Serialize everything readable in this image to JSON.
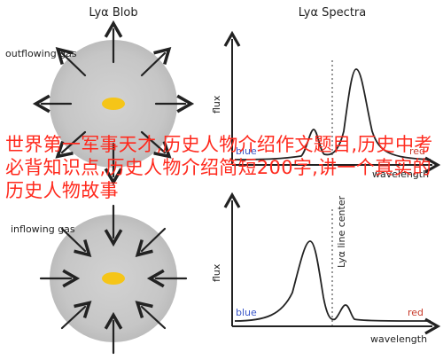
{
  "top_left_title": "Lyα Blob",
  "top_right_title": "Lyα Spectra",
  "outflow_label": "outflowing gas",
  "inflow_label": "inflowing gas",
  "flux_label": "flux",
  "wavelength_label": "wavelength",
  "line_center_label": "Lyα line center",
  "blue_label": "blue",
  "red_label": "red",
  "overlay_text": "世界第一军事天才,历史人物介绍作文题目,历史中考必背知识点,历史人物介绍简短200字,讲一个真实的历史人物故事",
  "colors": {
    "blob_gray": "#c8c8c8",
    "core_yellow": "#f5c518",
    "blue_text": "#3a56c8",
    "red_text": "#c83a2a",
    "overlay_red": "#ff2a1e"
  }
}
